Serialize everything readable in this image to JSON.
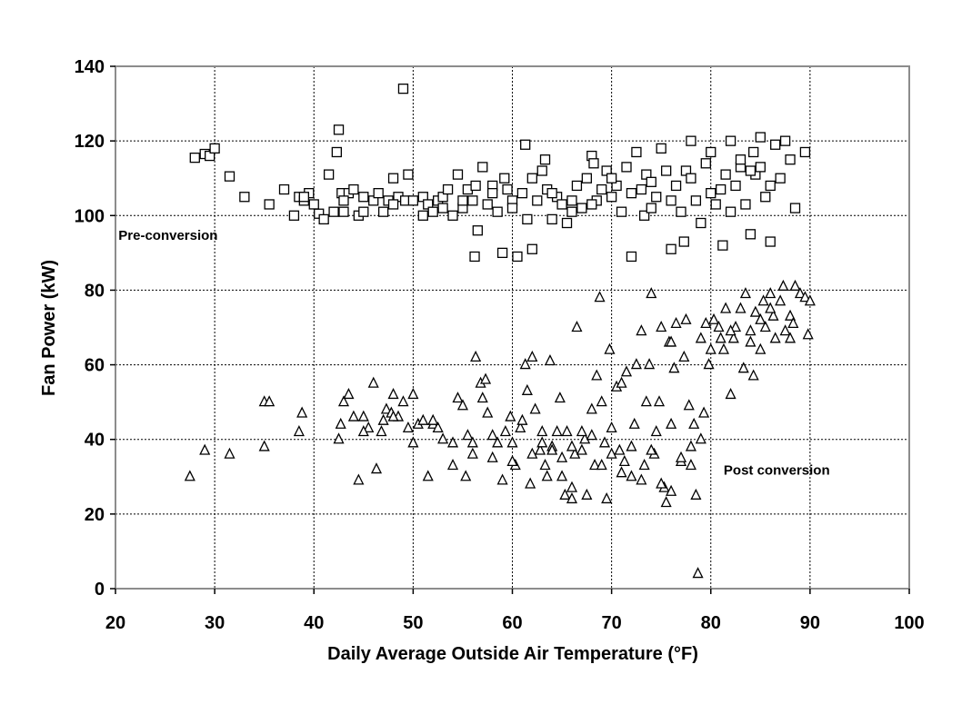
{
  "chart_data": {
    "type": "scatter",
    "xlabel": "Daily Average Outside Air Temperature (°F)",
    "ylabel": "Fan Power (kW)",
    "xlim": [
      20,
      100
    ],
    "ylim": [
      0,
      140
    ],
    "xticks": [
      20,
      30,
      40,
      50,
      60,
      70,
      80,
      90,
      100
    ],
    "yticks": [
      0,
      20,
      40,
      60,
      80,
      100,
      120,
      140
    ],
    "grid": true,
    "annotations": [
      {
        "text": "Pre-conversion",
        "x": 20.3,
        "y": 93.5
      },
      {
        "text": "Post conversion",
        "x": 81.3,
        "y": 30.5
      }
    ],
    "series": [
      {
        "marker": "square",
        "points": [
          [
            28,
            115.5
          ],
          [
            29,
            116.5
          ],
          [
            29.5,
            116
          ],
          [
            30,
            118
          ],
          [
            31.5,
            110.5
          ],
          [
            33,
            105
          ],
          [
            35.5,
            103
          ],
          [
            37,
            107
          ],
          [
            38,
            100
          ],
          [
            38.5,
            105
          ],
          [
            39,
            104
          ],
          [
            39.5,
            106
          ],
          [
            40.5,
            100.5
          ],
          [
            41,
            99
          ],
          [
            41.5,
            111
          ],
          [
            42,
            101
          ],
          [
            42.3,
            117
          ],
          [
            42.5,
            123
          ],
          [
            42.8,
            106
          ],
          [
            43,
            101
          ],
          [
            43.5,
            106
          ],
          [
            44,
            107
          ],
          [
            44.5,
            100
          ],
          [
            45,
            101
          ],
          [
            46,
            104
          ],
          [
            46.5,
            106
          ],
          [
            47,
            101
          ],
          [
            47.5,
            104
          ],
          [
            48,
            110
          ],
          [
            48.5,
            105
          ],
          [
            49,
            134
          ],
          [
            49.2,
            104
          ],
          [
            49.5,
            111
          ],
          [
            50,
            104
          ],
          [
            51,
            105
          ],
          [
            51.5,
            103
          ],
          [
            52,
            101
          ],
          [
            52.5,
            104
          ],
          [
            53,
            105
          ],
          [
            53.5,
            107
          ],
          [
            54,
            100
          ],
          [
            54.5,
            111
          ],
          [
            55,
            102
          ],
          [
            55.5,
            107
          ],
          [
            56,
            104
          ],
          [
            56.3,
            108
          ],
          [
            56.2,
            89
          ],
          [
            56.5,
            96
          ],
          [
            57,
            113
          ],
          [
            57.5,
            103
          ],
          [
            58,
            108
          ],
          [
            58.5,
            101
          ],
          [
            59,
            90
          ],
          [
            59.2,
            110
          ],
          [
            59.5,
            107
          ],
          [
            60,
            104
          ],
          [
            60.5,
            89
          ],
          [
            61,
            106
          ],
          [
            61.3,
            119
          ],
          [
            61.5,
            99
          ],
          [
            62,
            91
          ],
          [
            62.5,
            104
          ],
          [
            63,
            112
          ],
          [
            63.3,
            115
          ],
          [
            63.5,
            107
          ],
          [
            64,
            99
          ],
          [
            64.5,
            105
          ],
          [
            65,
            103
          ],
          [
            65.5,
            98
          ],
          [
            66,
            104
          ],
          [
            66.5,
            108
          ],
          [
            67,
            102
          ],
          [
            67.5,
            110
          ],
          [
            68,
            116
          ],
          [
            68.2,
            114
          ],
          [
            68.5,
            104
          ],
          [
            69,
            107
          ],
          [
            69.5,
            112
          ],
          [
            70,
            105
          ],
          [
            70.5,
            108
          ],
          [
            71,
            101
          ],
          [
            71.5,
            113
          ],
          [
            72,
            89
          ],
          [
            72.5,
            117
          ],
          [
            73,
            107
          ],
          [
            73.3,
            100
          ],
          [
            73.5,
            111
          ],
          [
            74,
            102
          ],
          [
            74.5,
            105
          ],
          [
            75,
            118
          ],
          [
            75.5,
            112
          ],
          [
            76,
            91
          ],
          [
            76.5,
            108
          ],
          [
            77,
            101
          ],
          [
            77.3,
            93
          ],
          [
            77.5,
            112
          ],
          [
            78,
            120
          ],
          [
            78.5,
            104
          ],
          [
            79,
            98
          ],
          [
            79.5,
            114
          ],
          [
            80,
            117
          ],
          [
            80.5,
            103
          ],
          [
            81,
            107
          ],
          [
            81.2,
            92
          ],
          [
            81.5,
            111
          ],
          [
            82,
            120
          ],
          [
            82.5,
            108
          ],
          [
            83,
            113
          ],
          [
            83.5,
            103
          ],
          [
            84,
            95
          ],
          [
            84.3,
            117
          ],
          [
            84.5,
            111
          ],
          [
            85,
            121
          ],
          [
            85.5,
            105
          ],
          [
            86,
            93
          ],
          [
            86.5,
            119
          ],
          [
            87,
            110
          ],
          [
            87.5,
            120
          ],
          [
            88,
            115
          ],
          [
            88.5,
            102
          ],
          [
            89.5,
            117
          ],
          [
            84,
            112
          ],
          [
            83,
            115
          ],
          [
            85,
            113
          ],
          [
            86,
            108
          ],
          [
            82,
            101
          ],
          [
            80,
            106
          ],
          [
            78,
            110
          ],
          [
            76,
            104
          ],
          [
            74,
            109
          ],
          [
            72,
            106
          ],
          [
            70,
            110
          ],
          [
            68,
            103
          ],
          [
            66,
            101
          ],
          [
            64,
            106
          ],
          [
            62,
            110
          ],
          [
            60,
            102
          ],
          [
            58,
            106
          ],
          [
            55,
            104
          ],
          [
            53,
            102
          ],
          [
            51,
            100
          ],
          [
            48,
            103
          ],
          [
            45,
            105
          ],
          [
            43,
            104
          ],
          [
            40,
            103
          ],
          [
            39,
            105
          ]
        ]
      },
      {
        "marker": "triangle",
        "points": [
          [
            27.5,
            30
          ],
          [
            29,
            37
          ],
          [
            31.5,
            36
          ],
          [
            35,
            50
          ],
          [
            35,
            38
          ],
          [
            35.5,
            50
          ],
          [
            38.5,
            42
          ],
          [
            38.8,
            47
          ],
          [
            42.5,
            40
          ],
          [
            42.7,
            44
          ],
          [
            43,
            50
          ],
          [
            43.5,
            52
          ],
          [
            44,
            46
          ],
          [
            44.5,
            29
          ],
          [
            45,
            46
          ],
          [
            45.5,
            43
          ],
          [
            46,
            55
          ],
          [
            46.3,
            32
          ],
          [
            46.8,
            42
          ],
          [
            47.3,
            48
          ],
          [
            47.8,
            47
          ],
          [
            48,
            52
          ],
          [
            48.5,
            46
          ],
          [
            49,
            50
          ],
          [
            49.5,
            43
          ],
          [
            50,
            39
          ],
          [
            50,
            52
          ],
          [
            50.5,
            44
          ],
          [
            51,
            45
          ],
          [
            51.5,
            30
          ],
          [
            52,
            44
          ],
          [
            52.5,
            43
          ],
          [
            53,
            40
          ],
          [
            54,
            39
          ],
          [
            54.5,
            51
          ],
          [
            55,
            49
          ],
          [
            55.3,
            30
          ],
          [
            55.5,
            41
          ],
          [
            56,
            39
          ],
          [
            56.3,
            62
          ],
          [
            56.8,
            55
          ],
          [
            57,
            51
          ],
          [
            57.3,
            56
          ],
          [
            57.5,
            47
          ],
          [
            58,
            35
          ],
          [
            58.5,
            39
          ],
          [
            59,
            29
          ],
          [
            59.3,
            42
          ],
          [
            59.8,
            46
          ],
          [
            60,
            39
          ],
          [
            60.3,
            33
          ],
          [
            60.8,
            43
          ],
          [
            61.3,
            60
          ],
          [
            61.5,
            53
          ],
          [
            61.8,
            28
          ],
          [
            62,
            62
          ],
          [
            62.3,
            48
          ],
          [
            62.8,
            37
          ],
          [
            63,
            42
          ],
          [
            63.3,
            33
          ],
          [
            63.5,
            30
          ],
          [
            63.8,
            61
          ],
          [
            64,
            38
          ],
          [
            64.5,
            42
          ],
          [
            64.8,
            51
          ],
          [
            65,
            30
          ],
          [
            65.3,
            25
          ],
          [
            65.5,
            42
          ],
          [
            66,
            27
          ],
          [
            66.3,
            36
          ],
          [
            66.5,
            70
          ],
          [
            67,
            37
          ],
          [
            67.3,
            40
          ],
          [
            67.5,
            25
          ],
          [
            68,
            48
          ],
          [
            68.3,
            33
          ],
          [
            68.5,
            57
          ],
          [
            68.8,
            78
          ],
          [
            69,
            50
          ],
          [
            69.3,
            39
          ],
          [
            69.5,
            24
          ],
          [
            69.8,
            64
          ],
          [
            70,
            43
          ],
          [
            70.5,
            54
          ],
          [
            70.8,
            37
          ],
          [
            71,
            55
          ],
          [
            71.3,
            34
          ],
          [
            71.5,
            58
          ],
          [
            72,
            30
          ],
          [
            72.3,
            44
          ],
          [
            72.5,
            60
          ],
          [
            73,
            69
          ],
          [
            73.3,
            33
          ],
          [
            73.5,
            50
          ],
          [
            73.8,
            60
          ],
          [
            74,
            79
          ],
          [
            74.3,
            36
          ],
          [
            74.5,
            42
          ],
          [
            74.8,
            50
          ],
          [
            75,
            70
          ],
          [
            75.3,
            27
          ],
          [
            75.5,
            23
          ],
          [
            75.8,
            66
          ],
          [
            76,
            44
          ],
          [
            76.3,
            59
          ],
          [
            76.5,
            71
          ],
          [
            77,
            34
          ],
          [
            77.3,
            62
          ],
          [
            77.5,
            72
          ],
          [
            77.8,
            49
          ],
          [
            78,
            33
          ],
          [
            78.3,
            44
          ],
          [
            78.5,
            25
          ],
          [
            78.7,
            4
          ],
          [
            79,
            67
          ],
          [
            79.3,
            47
          ],
          [
            79.5,
            71
          ],
          [
            79.8,
            60
          ],
          [
            80,
            64
          ],
          [
            80.3,
            72
          ],
          [
            80.8,
            70
          ],
          [
            81,
            67
          ],
          [
            81.3,
            64
          ],
          [
            81.5,
            75
          ],
          [
            82,
            52
          ],
          [
            82.3,
            67
          ],
          [
            82.5,
            70
          ],
          [
            83,
            75
          ],
          [
            83.3,
            59
          ],
          [
            83.5,
            79
          ],
          [
            84,
            69
          ],
          [
            84.3,
            57
          ],
          [
            84.5,
            74
          ],
          [
            85,
            64
          ],
          [
            85.3,
            77
          ],
          [
            85.5,
            70
          ],
          [
            86,
            79
          ],
          [
            86.3,
            73
          ],
          [
            86.5,
            67
          ],
          [
            87,
            77
          ],
          [
            87.3,
            81
          ],
          [
            87.5,
            69
          ],
          [
            88,
            73
          ],
          [
            88.3,
            71
          ],
          [
            88.5,
            81
          ],
          [
            89,
            79
          ],
          [
            89.5,
            78
          ],
          [
            89.8,
            68
          ],
          [
            90,
            77
          ],
          [
            85,
            72
          ],
          [
            84,
            66
          ],
          [
            82,
            69
          ],
          [
            86,
            75
          ],
          [
            88,
            67
          ],
          [
            76,
            66
          ],
          [
            74,
            37
          ],
          [
            72,
            38
          ],
          [
            70,
            36
          ],
          [
            68,
            41
          ],
          [
            66,
            38
          ],
          [
            64,
            37
          ],
          [
            62,
            36
          ],
          [
            60,
            34
          ],
          [
            58,
            41
          ],
          [
            56,
            36
          ],
          [
            54,
            33
          ],
          [
            52,
            45
          ],
          [
            47,
            45
          ],
          [
            45,
            42
          ],
          [
            48,
            46
          ],
          [
            61,
            45
          ],
          [
            63,
            39
          ],
          [
            65,
            35
          ],
          [
            67,
            42
          ],
          [
            69,
            33
          ],
          [
            71,
            31
          ],
          [
            73,
            29
          ],
          [
            75,
            28
          ],
          [
            77,
            35
          ],
          [
            79,
            40
          ],
          [
            78,
            38
          ],
          [
            76,
            26
          ],
          [
            66,
            24
          ]
        ]
      }
    ]
  }
}
